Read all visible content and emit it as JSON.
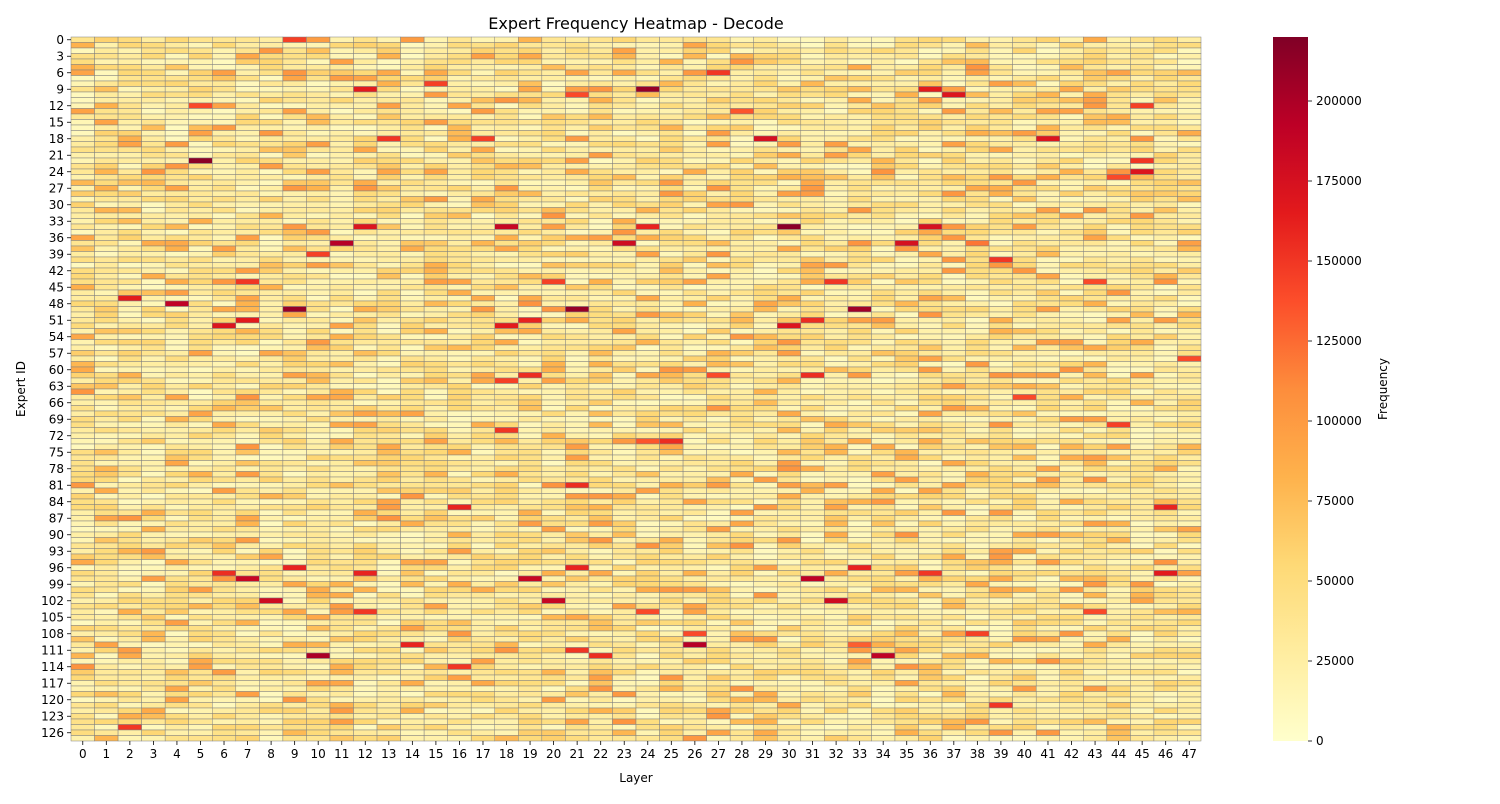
{
  "chart_data": {
    "type": "heatmap",
    "title": "Expert Frequency Heatmap - Decode",
    "xlabel": "Layer",
    "ylabel": "Expert ID",
    "colorbar_label": "Frequency",
    "x": [
      0,
      1,
      2,
      3,
      4,
      5,
      6,
      7,
      8,
      9,
      10,
      11,
      12,
      13,
      14,
      15,
      16,
      17,
      18,
      19,
      20,
      21,
      22,
      23,
      24,
      25,
      26,
      27,
      28,
      29,
      30,
      31,
      32,
      33,
      34,
      35,
      36,
      37,
      38,
      39,
      40,
      41,
      42,
      43,
      44,
      45,
      46,
      47
    ],
    "y_count": 128,
    "y_tick_labels": [
      "0",
      "3",
      "6",
      "9",
      "12",
      "15",
      "18",
      "21",
      "24",
      "27",
      "30",
      "33",
      "36",
      "39",
      "42",
      "45",
      "48",
      "51",
      "54",
      "57",
      "60",
      "63",
      "66",
      "69",
      "72",
      "75",
      "78",
      "81",
      "84",
      "87",
      "90",
      "93",
      "96",
      "99",
      "102",
      "105",
      "108",
      "111",
      "114",
      "117",
      "120",
      "123",
      "126"
    ],
    "colorbar_ticks": [
      "0",
      "25000",
      "50000",
      "75000",
      "100000",
      "125000",
      "150000",
      "175000",
      "200000"
    ],
    "vmin": 0,
    "vmax": 220000,
    "colormap": [
      "#ffffcc",
      "#ffeda0",
      "#fed976",
      "#feb24c",
      "#fd8d3c",
      "#fc4e2a",
      "#e31a1c",
      "#bd0026",
      "#800026"
    ],
    "cell_border_color": "#808080",
    "hotspots": [
      {
        "layer": 5,
        "expert": 22,
        "value": 215000
      },
      {
        "layer": 24,
        "expert": 9,
        "value": 210000
      },
      {
        "layer": 30,
        "expert": 34,
        "value": 215000
      },
      {
        "layer": 9,
        "expert": 49,
        "value": 210000
      },
      {
        "layer": 21,
        "expert": 49,
        "value": 210000
      },
      {
        "layer": 33,
        "expert": 49,
        "value": 205000
      },
      {
        "layer": 10,
        "expert": 112,
        "value": 200000
      },
      {
        "layer": 26,
        "expert": 110,
        "value": 195000
      },
      {
        "layer": 34,
        "expert": 112,
        "value": 190000
      },
      {
        "layer": 11,
        "expert": 37,
        "value": 195000
      },
      {
        "layer": 18,
        "expert": 34,
        "value": 185000
      },
      {
        "layer": 4,
        "expert": 48,
        "value": 190000
      },
      {
        "layer": 7,
        "expert": 98,
        "value": 185000
      },
      {
        "layer": 31,
        "expert": 98,
        "value": 190000
      },
      {
        "layer": 19,
        "expert": 98,
        "value": 185000
      },
      {
        "layer": 8,
        "expert": 102,
        "value": 180000
      },
      {
        "layer": 20,
        "expert": 102,
        "value": 185000
      },
      {
        "layer": 32,
        "expert": 102,
        "value": 180000
      },
      {
        "layer": 23,
        "expert": 37,
        "value": 180000
      },
      {
        "layer": 35,
        "expert": 37,
        "value": 175000
      },
      {
        "layer": 29,
        "expert": 18,
        "value": 175000
      },
      {
        "layer": 41,
        "expert": 18,
        "value": 170000
      },
      {
        "layer": 36,
        "expert": 34,
        "value": 175000
      },
      {
        "layer": 12,
        "expert": 34,
        "value": 170000
      },
      {
        "layer": 45,
        "expert": 24,
        "value": 170000
      },
      {
        "layer": 46,
        "expert": 97,
        "value": 165000
      },
      {
        "layer": 37,
        "expert": 10,
        "value": 170000
      },
      {
        "layer": 36,
        "expert": 9,
        "value": 165000
      },
      {
        "layer": 12,
        "expert": 9,
        "value": 165000
      },
      {
        "layer": 6,
        "expert": 52,
        "value": 170000
      },
      {
        "layer": 30,
        "expert": 52,
        "value": 170000
      },
      {
        "layer": 18,
        "expert": 52,
        "value": 165000
      },
      {
        "layer": 7,
        "expert": 51,
        "value": 165000
      },
      {
        "layer": 19,
        "expert": 51,
        "value": 160000
      },
      {
        "layer": 31,
        "expert": 51,
        "value": 155000
      },
      {
        "layer": 2,
        "expert": 47,
        "value": 165000
      },
      {
        "layer": 16,
        "expert": 85,
        "value": 160000
      },
      {
        "layer": 46,
        "expert": 85,
        "value": 160000
      },
      {
        "layer": 21,
        "expert": 81,
        "value": 155000
      },
      {
        "layer": 9,
        "expert": 96,
        "value": 160000
      },
      {
        "layer": 21,
        "expert": 96,
        "value": 160000
      },
      {
        "layer": 33,
        "expert": 96,
        "value": 160000
      },
      {
        "layer": 12,
        "expert": 97,
        "value": 160000
      },
      {
        "layer": 6,
        "expert": 97,
        "value": 155000
      },
      {
        "layer": 36,
        "expert": 97,
        "value": 150000
      },
      {
        "layer": 14,
        "expert": 110,
        "value": 160000
      },
      {
        "layer": 21,
        "expert": 111,
        "value": 150000
      },
      {
        "layer": 22,
        "expert": 112,
        "value": 155000
      },
      {
        "layer": 25,
        "expert": 73,
        "value": 155000
      },
      {
        "layer": 24,
        "expert": 34,
        "value": 160000
      },
      {
        "layer": 19,
        "expert": 61,
        "value": 155000
      },
      {
        "layer": 31,
        "expert": 61,
        "value": 155000
      },
      {
        "layer": 39,
        "expert": 121,
        "value": 150000
      },
      {
        "layer": 2,
        "expert": 125,
        "value": 150000
      },
      {
        "layer": 38,
        "expert": 108,
        "value": 145000
      },
      {
        "layer": 16,
        "expert": 114,
        "value": 150000
      },
      {
        "layer": 40,
        "expert": 65,
        "value": 140000
      },
      {
        "layer": 39,
        "expert": 40,
        "value": 150000
      },
      {
        "layer": 10,
        "expert": 39,
        "value": 145000
      },
      {
        "layer": 45,
        "expert": 12,
        "value": 145000
      },
      {
        "layer": 45,
        "expert": 22,
        "value": 150000
      },
      {
        "layer": 44,
        "expert": 70,
        "value": 145000
      },
      {
        "layer": 32,
        "expert": 44,
        "value": 150000
      },
      {
        "layer": 20,
        "expert": 44,
        "value": 145000
      },
      {
        "layer": 7,
        "expert": 44,
        "value": 150000
      },
      {
        "layer": 27,
        "expert": 6,
        "value": 150000
      },
      {
        "layer": 15,
        "expert": 8,
        "value": 145000
      },
      {
        "layer": 21,
        "expert": 10,
        "value": 140000
      },
      {
        "layer": 9,
        "expert": 0,
        "value": 145000
      },
      {
        "layer": 18,
        "expert": 71,
        "value": 150000
      },
      {
        "layer": 18,
        "expert": 62,
        "value": 145000
      },
      {
        "layer": 47,
        "expert": 58,
        "value": 140000
      },
      {
        "layer": 27,
        "expert": 61,
        "value": 140000
      },
      {
        "layer": 23,
        "expert": 73,
        "value": 100000
      },
      {
        "layer": 43,
        "expert": 44,
        "value": 140000
      },
      {
        "layer": 43,
        "expert": 104,
        "value": 140000
      },
      {
        "layer": 12,
        "expert": 104,
        "value": 150000
      },
      {
        "layer": 24,
        "expert": 104,
        "value": 140000
      },
      {
        "layer": 26,
        "expert": 108,
        "value": 140000
      },
      {
        "layer": 33,
        "expert": 110,
        "value": 130000
      },
      {
        "layer": 13,
        "expert": 18,
        "value": 150000
      },
      {
        "layer": 17,
        "expert": 18,
        "value": 145000
      },
      {
        "layer": 5,
        "expert": 12,
        "value": 140000
      },
      {
        "layer": 28,
        "expert": 13,
        "value": 135000
      },
      {
        "layer": 38,
        "expert": 37,
        "value": 120000
      },
      {
        "layer": 44,
        "expert": 25,
        "value": 140000
      },
      {
        "layer": 24,
        "expert": 73,
        "value": 135000
      }
    ]
  }
}
